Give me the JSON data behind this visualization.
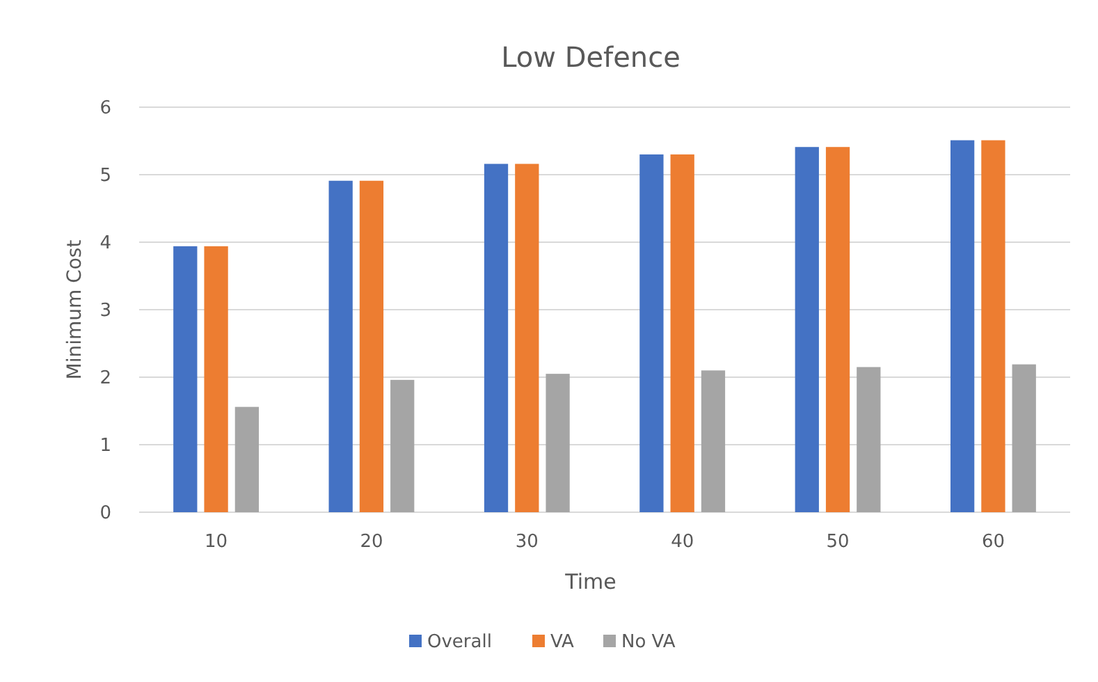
{
  "chart_data": {
    "type": "bar",
    "title": "Low Defence",
    "xlabel": "Time",
    "ylabel": "Minimum Cost",
    "categories": [
      "10",
      "20",
      "30",
      "40",
      "50",
      "60"
    ],
    "series": [
      {
        "name": "Overall",
        "color": "#4472c4",
        "values": [
          3.94,
          4.91,
          5.16,
          5.3,
          5.41,
          5.51
        ]
      },
      {
        "name": "VA",
        "color": "#ed7d31",
        "values": [
          3.94,
          4.91,
          5.16,
          5.3,
          5.41,
          5.51
        ]
      },
      {
        "name": "No VA",
        "color": "#a5a5a5",
        "values": [
          1.56,
          1.96,
          2.05,
          2.1,
          2.15,
          2.19
        ]
      }
    ],
    "ylim": [
      0,
      6
    ],
    "yticks": [
      0,
      1,
      2,
      3,
      4,
      5,
      6
    ],
    "grid": "y",
    "legend": "bottom"
  }
}
